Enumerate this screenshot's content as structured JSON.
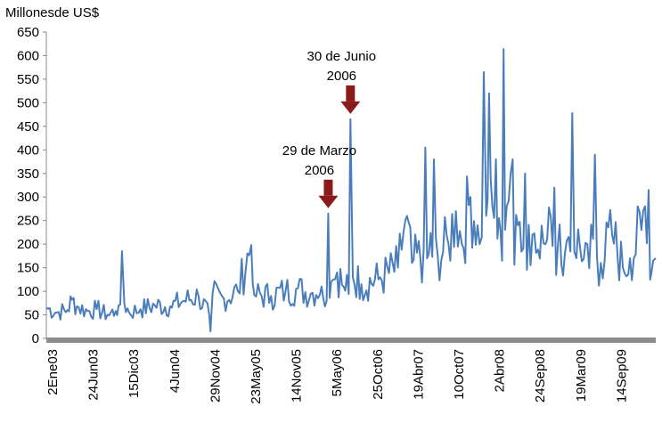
{
  "chart_data": {
    "type": "line",
    "ylabel": "Millonesde US$",
    "ylim": [
      0,
      650
    ],
    "yticks": [
      0,
      50,
      100,
      150,
      200,
      250,
      300,
      350,
      400,
      450,
      500,
      550,
      600,
      650
    ],
    "xticklabels": [
      "2Ene03",
      "24Jun03",
      "15Dic03",
      "4Jun04",
      "29Nov04",
      "23May05",
      "14Nov05",
      "5May06",
      "25Oct06",
      "19Abr07",
      "10Oct07",
      "2Abr08",
      "24Sep08",
      "19Mar09",
      "14Sep09"
    ],
    "x_range": [
      "2003-01-02",
      "2009-12-31"
    ],
    "grid": false,
    "line_color": "#4a7ebb",
    "arrow_color": "#8b1a1a",
    "series": [
      {
        "values": [
          {
            "x": "2003-01-02",
            "y": 65
          },
          {
            "x": "2003-02-15",
            "y": 55
          },
          {
            "x": "2003-04-01",
            "y": 60
          },
          {
            "x": "2003-04-20",
            "y": 82
          },
          {
            "x": "2003-05-10",
            "y": 68
          },
          {
            "x": "2003-06-24",
            "y": 58
          },
          {
            "x": "2003-08-01",
            "y": 62
          },
          {
            "x": "2003-09-15",
            "y": 50
          },
          {
            "x": "2003-10-20",
            "y": 58
          },
          {
            "x": "2003-11-01",
            "y": 70
          },
          {
            "x": "2003-11-15",
            "y": 185
          },
          {
            "x": "2003-11-25",
            "y": 75
          },
          {
            "x": "2003-12-15",
            "y": 55
          },
          {
            "x": "2004-02-01",
            "y": 62
          },
          {
            "x": "2004-04-01",
            "y": 70
          },
          {
            "x": "2004-06-04",
            "y": 68
          },
          {
            "x": "2004-08-01",
            "y": 80
          },
          {
            "x": "2004-10-01",
            "y": 90
          },
          {
            "x": "2004-11-15",
            "y": 50
          },
          {
            "x": "2004-11-20",
            "y": 15
          },
          {
            "x": "2004-11-29",
            "y": 95
          },
          {
            "x": "2005-01-15",
            "y": 85
          },
          {
            "x": "2005-03-15",
            "y": 100
          },
          {
            "x": "2005-05-10",
            "y": 198
          },
          {
            "x": "2005-05-23",
            "y": 92
          },
          {
            "x": "2005-08-01",
            "y": 90
          },
          {
            "x": "2005-10-01",
            "y": 100
          },
          {
            "x": "2005-11-14",
            "y": 105
          },
          {
            "x": "2006-01-15",
            "y": 95
          },
          {
            "x": "2006-03-01",
            "y": 110
          },
          {
            "x": "2006-03-29",
            "y": 265
          },
          {
            "x": "2006-04-10",
            "y": 120
          },
          {
            "x": "2006-05-05",
            "y": 140
          },
          {
            "x": "2006-06-01",
            "y": 110
          },
          {
            "x": "2006-06-30",
            "y": 465
          },
          {
            "x": "2006-07-10",
            "y": 130
          },
          {
            "x": "2006-08-15",
            "y": 115
          },
          {
            "x": "2006-10-25",
            "y": 125
          },
          {
            "x": "2007-01-15",
            "y": 150
          },
          {
            "x": "2007-02-15",
            "y": 250
          },
          {
            "x": "2007-03-15",
            "y": 160
          },
          {
            "x": "2007-04-19",
            "y": 170
          },
          {
            "x": "2007-05-10",
            "y": 405
          },
          {
            "x": "2007-05-25",
            "y": 180
          },
          {
            "x": "2007-06-15",
            "y": 380
          },
          {
            "x": "2007-07-01",
            "y": 175
          },
          {
            "x": "2007-08-15",
            "y": 200
          },
          {
            "x": "2007-09-15",
            "y": 270
          },
          {
            "x": "2007-10-10",
            "y": 200
          },
          {
            "x": "2007-11-15",
            "y": 300
          },
          {
            "x": "2007-12-15",
            "y": 240
          },
          {
            "x": "2008-01-10",
            "y": 565
          },
          {
            "x": "2008-01-20",
            "y": 260
          },
          {
            "x": "2008-02-01",
            "y": 520
          },
          {
            "x": "2008-02-15",
            "y": 280
          },
          {
            "x": "2008-03-01",
            "y": 380
          },
          {
            "x": "2008-03-20",
            "y": 230
          },
          {
            "x": "2008-04-02",
            "y": 614
          },
          {
            "x": "2008-04-15",
            "y": 280
          },
          {
            "x": "2008-05-10",
            "y": 380
          },
          {
            "x": "2008-06-01",
            "y": 240
          },
          {
            "x": "2008-07-01",
            "y": 350
          },
          {
            "x": "2008-08-01",
            "y": 220
          },
          {
            "x": "2008-09-24",
            "y": 200
          },
          {
            "x": "2008-11-01",
            "y": 320
          },
          {
            "x": "2008-12-15",
            "y": 180
          },
          {
            "x": "2009-01-15",
            "y": 478
          },
          {
            "x": "2009-02-01",
            "y": 170
          },
          {
            "x": "2009-03-19",
            "y": 200
          },
          {
            "x": "2009-04-20",
            "y": 390
          },
          {
            "x": "2009-05-15",
            "y": 160
          },
          {
            "x": "2009-07-01",
            "y": 220
          },
          {
            "x": "2009-08-15",
            "y": 150
          },
          {
            "x": "2009-09-14",
            "y": 170
          },
          {
            "x": "2009-11-01",
            "y": 230
          },
          {
            "x": "2009-12-01",
            "y": 315
          },
          {
            "x": "2009-12-20",
            "y": 165
          },
          {
            "x": "2009-12-31",
            "y": 170
          }
        ]
      }
    ],
    "annotations": [
      {
        "lines": [
          "29 de Marzo",
          "2006"
        ],
        "x": "2006-03-29",
        "y": 265
      },
      {
        "lines": [
          "30 de Junio",
          "2006"
        ],
        "x": "2006-06-30",
        "y": 465
      }
    ]
  }
}
